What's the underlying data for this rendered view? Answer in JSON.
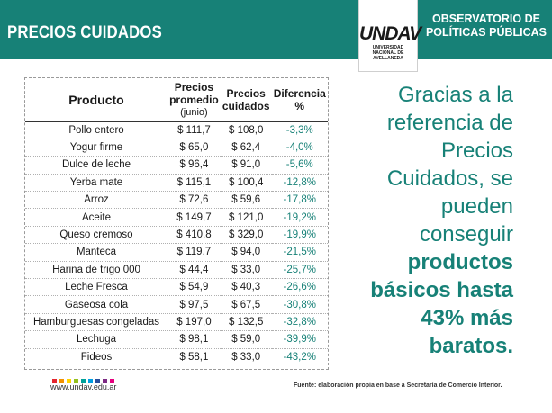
{
  "header": {
    "title": "PRECIOS CUIDADOS",
    "logo_word": "UNDAV",
    "logo_sub": [
      "UNIVERSIDAD",
      "NACIONAL DE",
      "AVELLANEDA"
    ],
    "observatorio": [
      "OBSERVATORIO DE",
      "POLÍTICAS PÚBLICAS"
    ]
  },
  "table": {
    "headers": {
      "producto": "Producto",
      "promedio_1": "Precios",
      "promedio_2": "promedio",
      "promedio_3": "(junio)",
      "cuidados_1": "Precios",
      "cuidados_2": "cuidados",
      "diferencia_1": "Diferencia",
      "diferencia_2": "%"
    },
    "rows": [
      {
        "producto": "Pollo entero",
        "promedio": "$ 111,7",
        "cuidados": "$ 108,0",
        "diferencia": "-3,3%"
      },
      {
        "producto": "Yogur firme",
        "promedio": "$ 65,0",
        "cuidados": "$ 62,4",
        "diferencia": "-4,0%"
      },
      {
        "producto": "Dulce de leche",
        "promedio": "$ 96,4",
        "cuidados": "$ 91,0",
        "diferencia": "-5,6%"
      },
      {
        "producto": "Yerba mate",
        "promedio": "$ 115,1",
        "cuidados": "$ 100,4",
        "diferencia": "-12,8%"
      },
      {
        "producto": "Arroz",
        "promedio": "$ 72,6",
        "cuidados": "$ 59,6",
        "diferencia": "-17,8%"
      },
      {
        "producto": "Aceite",
        "promedio": "$ 149,7",
        "cuidados": "$ 121,0",
        "diferencia": "-19,2%"
      },
      {
        "producto": "Queso cremoso",
        "promedio": "$ 410,8",
        "cuidados": "$ 329,0",
        "diferencia": "-19,9%"
      },
      {
        "producto": "Manteca",
        "promedio": "$ 119,7",
        "cuidados": "$ 94,0",
        "diferencia": "-21,5%"
      },
      {
        "producto": "Harina de trigo 000",
        "promedio": "$ 44,4",
        "cuidados": "$ 33,0",
        "diferencia": "-25,7%"
      },
      {
        "producto": "Leche Fresca",
        "promedio": "$ 54,9",
        "cuidados": "$ 40,3",
        "diferencia": "-26,6%"
      },
      {
        "producto": "Gaseosa cola",
        "promedio": "$ 97,5",
        "cuidados": "$ 67,5",
        "diferencia": "-30,8%"
      },
      {
        "producto": "Hamburguesas congeladas",
        "promedio": "$ 197,0",
        "cuidados": "$ 132,5",
        "diferencia": "-32,8%"
      },
      {
        "producto": "Lechuga",
        "promedio": "$ 98,1",
        "cuidados": "$ 59,0",
        "diferencia": "-39,9%"
      },
      {
        "producto": "Fideos",
        "promedio": "$ 58,1",
        "cuidados": "$ 33,0",
        "diferencia": "-43,2%"
      }
    ]
  },
  "tagline": {
    "lines_normal": [
      "Gracias a la",
      "referencia de",
      "Precios",
      "Cuidados, se",
      "pueden",
      "conseguir"
    ],
    "lines_bold": [
      "productos",
      "básicos hasta",
      "43% más",
      "baratos."
    ]
  },
  "footer": {
    "website": "www.undav.edu.ar",
    "fuente": "Fuente: elaboración propia en base a Secretaría de Comercio Interior.",
    "dot_colors": [
      "#e4262f",
      "#f39200",
      "#ffd400",
      "#95c11f",
      "#00a19a",
      "#009fe3",
      "#2a4f9c",
      "#7b2a82",
      "#e6007e"
    ]
  },
  "colors": {
    "brand_teal": "#178177"
  }
}
